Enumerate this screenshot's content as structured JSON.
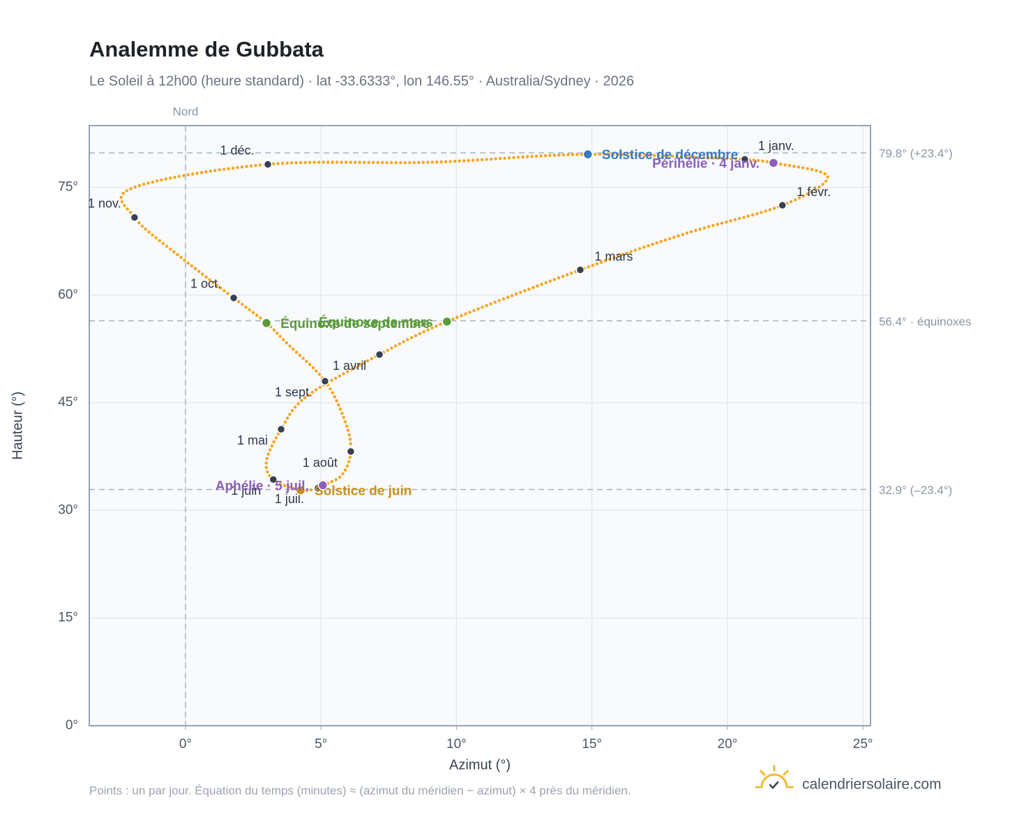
{
  "chart_data": {
    "type": "analemma",
    "title": "Analemme de Gubbata",
    "subtitle": "Le Soleil à 12h00 (heure standard) · lat -33.6333°, lon 146.55° · Australia/Sydney · 2026",
    "x_label": "Azimut (°)",
    "y_label": "Hauteur (°)",
    "footnote": "Points : un par jour. Équation du temps (minutes) ≈ (azimut du méridien − azimut) × 4 près du méridien.",
    "brand": "calendriersolaire.com",
    "xlim": [
      -3.55,
      25.28
    ],
    "ylim": [
      0,
      83.6
    ],
    "xticks": [
      {
        "value": 0,
        "label": "0°"
      },
      {
        "value": 5,
        "label": "5°"
      },
      {
        "value": 10,
        "label": "10°"
      },
      {
        "value": 15,
        "label": "15°"
      },
      {
        "value": 20,
        "label": "20°"
      },
      {
        "value": 25,
        "label": "25°"
      }
    ],
    "yticks": [
      {
        "value": 0,
        "label": "0°"
      },
      {
        "value": 15,
        "label": "15°"
      },
      {
        "value": 30,
        "label": "30°"
      },
      {
        "value": 45,
        "label": "45°"
      },
      {
        "value": 60,
        "label": "60°"
      },
      {
        "value": 75,
        "label": "75°"
      }
    ],
    "grid": true,
    "meridian": {
      "label": "Nord",
      "value": 0
    },
    "reference_lines": [
      {
        "value": 79.8,
        "label": "79.8° (+23.4°)"
      },
      {
        "value": 56.4,
        "label": "56.4° · équinoxes"
      },
      {
        "value": 32.9,
        "label": "32.9° (–23.4°)"
      }
    ],
    "trajectory": {
      "color": "#f5a623",
      "az": [
        20.64,
        21.7,
        23.7,
        22.03,
        18.4,
        14.57,
        9.65,
        7.16,
        4.48,
        3.53,
        2.99,
        3.24,
        4.25,
        4.89,
        5.07,
        5.77,
        6.1,
        5.89,
        5.15,
        3.71,
        2.99,
        1.78,
        -0.15,
        -1.88,
        -1.96,
        3.04,
        9.11,
        14.85,
        20.64
      ],
      "alt": [
        78.9,
        78.4,
        76.5,
        72.5,
        68.5,
        63.5,
        56.3,
        51.7,
        45.9,
        41.3,
        36.9,
        34.3,
        32.8,
        33.1,
        33.5,
        34.9,
        38.2,
        42.4,
        48.0,
        53.4,
        56.1,
        59.6,
        65.2,
        70.8,
        74.9,
        78.2,
        78.5,
        79.6,
        78.9
      ]
    },
    "month_markers": {
      "labels": [
        "1 janv.",
        "1 févr.",
        "1 mars",
        "1 avril",
        "1 mai",
        "1 juin",
        "1 juil.",
        "1 août",
        "1 sept.",
        "1 oct.",
        "1 nov.",
        "1 déc."
      ],
      "az": [
        20.64,
        22.03,
        14.57,
        7.16,
        3.53,
        3.24,
        4.89,
        6.1,
        5.15,
        1.78,
        -1.88,
        3.04
      ],
      "alt": [
        78.9,
        72.5,
        63.5,
        51.7,
        41.3,
        34.3,
        33.1,
        38.2,
        48.0,
        59.6,
        70.8,
        78.2
      ]
    },
    "events": [
      {
        "name": "Équinoxe de mars",
        "color": "#5a9a3a",
        "az": 9.65,
        "alt": 56.3
      },
      {
        "name": "Équinoxe de septembre",
        "color": "#5a9a3a",
        "az": 2.99,
        "alt": 56.1
      },
      {
        "name": "Solstice de décembre",
        "color": "#3a7abf",
        "az": 14.85,
        "alt": 79.6
      },
      {
        "name": "Périhélie · 4 janv.",
        "color": "#8b5fb8",
        "az": 21.7,
        "alt": 78.4
      },
      {
        "name": "Solstice de juin",
        "color": "#c8901a",
        "az": 4.25,
        "alt": 32.8
      },
      {
        "name": "Aphélie · 5 juil.",
        "color": "#8b5fb8",
        "az": 5.07,
        "alt": 33.5
      }
    ]
  }
}
